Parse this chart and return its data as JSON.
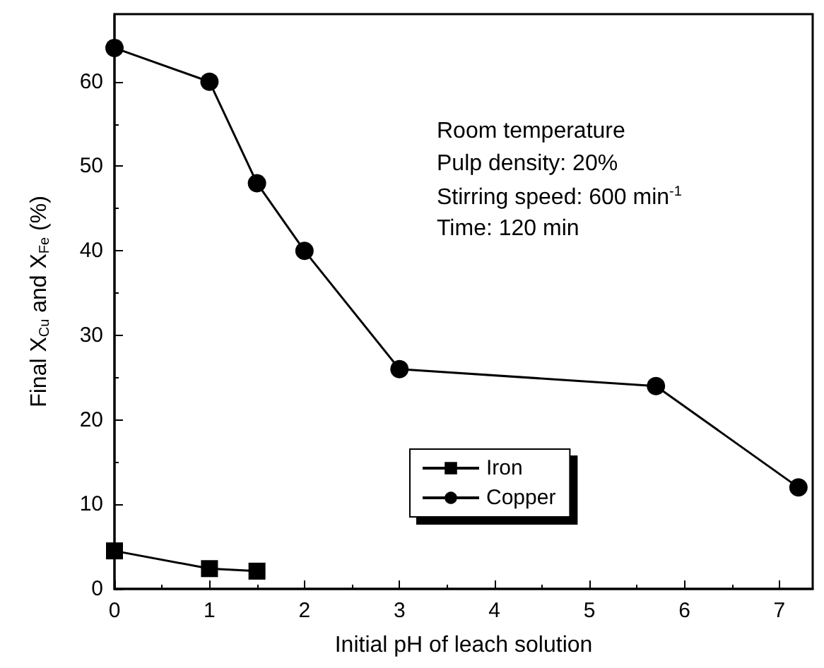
{
  "chart_data": {
    "type": "line",
    "xlabel": "Initial pH of leach solution",
    "ylabel": "Final X$_{Cu}$ and X$_{Fe}$ (%)",
    "xlim": [
      0,
      7.35
    ],
    "xticks": [
      0,
      1,
      2,
      3,
      4,
      5,
      6,
      7
    ],
    "ylim": [
      0,
      68
    ],
    "yticks": [
      0,
      10,
      20,
      30,
      40,
      50,
      60
    ],
    "series": [
      {
        "name": "Iron",
        "color": "#000000",
        "marker": "square",
        "x": [
          0,
          1,
          1.5
        ],
        "values": [
          4.5,
          2.4,
          2.1
        ]
      },
      {
        "name": "Copper",
        "color": "#000000",
        "marker": "circle",
        "x": [
          0,
          1,
          1.5,
          2,
          3,
          5.7,
          7.2
        ],
        "values": [
          64,
          60,
          48,
          40,
          26,
          24,
          12
        ]
      }
    ],
    "annotations": [
      "Room temperature",
      "Pulp density: 20%",
      "Stirring speed: 600 min$^{-1}$",
      "Time: 120 min"
    ],
    "legend": "bottom",
    "grid": false,
    "line_style": "solid"
  }
}
